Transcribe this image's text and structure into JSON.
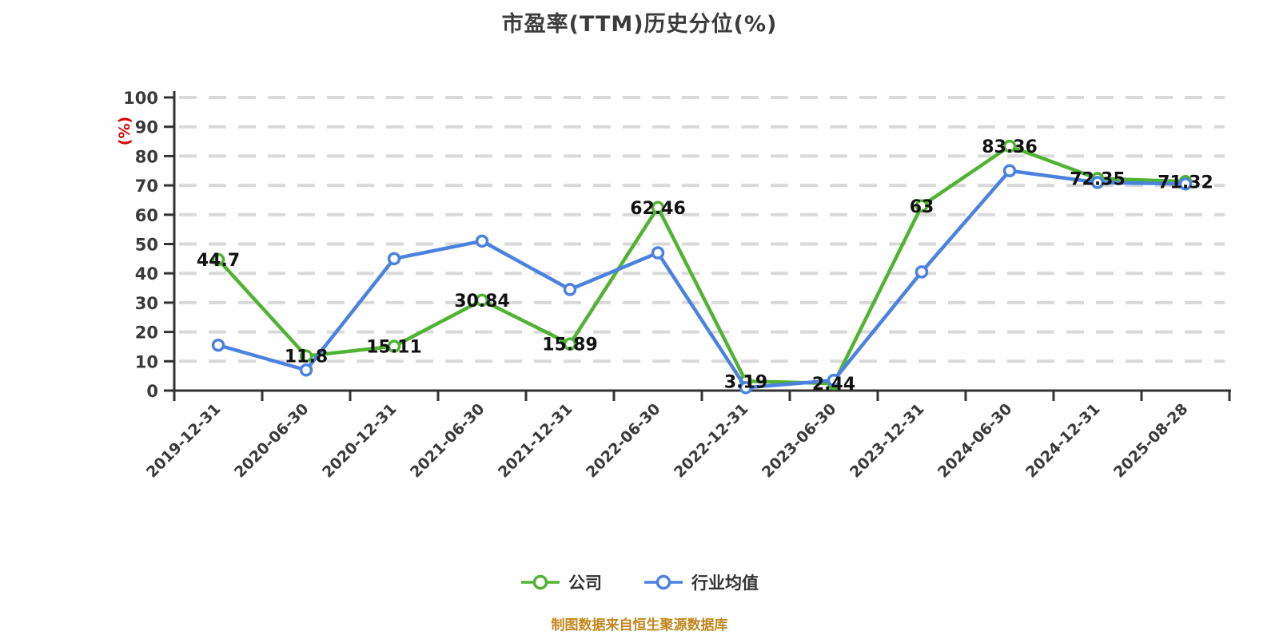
{
  "chart_data": {
    "type": "line",
    "title": "市盈率(TTM)历史分位(%)",
    "title_color": "#3b3b3b",
    "y_axis_name": "(%)",
    "y_axis_name_color": "#e00000",
    "ylim": [
      0,
      100
    ],
    "y_ticks": [
      0,
      10,
      20,
      30,
      40,
      50,
      60,
      70,
      80,
      90,
      100
    ],
    "grid": "horizontal-dashed",
    "grid_color": "#d9d9d9",
    "axis_color": "#333333",
    "tick_label_color": "#3a3a3a",
    "data_label_color": "#111111",
    "legend_position": "bottom",
    "categories": [
      "2019-12-31",
      "2020-06-30",
      "2020-12-31",
      "2021-06-30",
      "2021-12-31",
      "2022-06-30",
      "2022-12-31",
      "2023-06-30",
      "2023-12-31",
      "2024-06-30",
      "2024-12-31",
      "2025-08-28"
    ],
    "series": [
      {
        "name": "公司",
        "color": "#50b332",
        "values": [
          44.7,
          11.8,
          15.11,
          30.84,
          15.89,
          62.46,
          3.19,
          2.44,
          63,
          83.36,
          72.35,
          71.32
        ],
        "point_labels": [
          "44.7",
          "11.8",
          "15.11",
          "30.84",
          "15.89",
          "62.46",
          "3.19",
          "2.44",
          "63",
          "83.36",
          "72.35",
          "71.32"
        ]
      },
      {
        "name": "行业均值",
        "color": "#4c82df",
        "values": [
          15.5,
          7,
          45,
          51,
          34.5,
          47,
          1,
          3.5,
          40.5,
          75,
          71,
          70.5
        ],
        "point_labels": []
      }
    ]
  },
  "footer": {
    "text": "制图数据来自恒生聚源数据库",
    "color": "#c1871d"
  }
}
